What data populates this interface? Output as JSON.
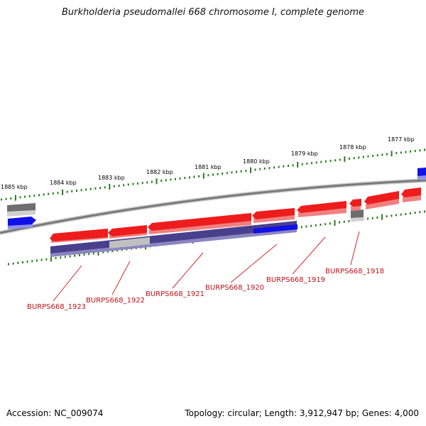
{
  "title": "Burkholderia pseudomallei 668 chromosome I, complete genome",
  "footer": {
    "accession": "Accession: NC_009074",
    "summary": "Topology: circular; Length: 3,912,947 bp; Genes: 4,000"
  },
  "scale_labels": [
    "1885 kbp",
    "1884 kbp",
    "1883 kbp",
    "1882 kbp",
    "1881 kbp",
    "1880 kbp",
    "1879 kbp",
    "1878 kbp",
    "1877 kbp"
  ],
  "gene_labels": [
    "BURPS668_1923",
    "BURPS668_1922",
    "BURPS668_1921",
    "BURPS668_1920",
    "BURPS668_1919",
    "BURPS668_1918"
  ],
  "colors": {
    "gene": "#ee1c1c",
    "gene_shadow": "#f08080",
    "tick": "#2a7a1e",
    "backbone": "#8a8a8a",
    "purple_track": "#4a3f8c",
    "grey_feature": "#6e6e6e",
    "light_grey_feature": "#c0c0c0",
    "blue_feature": "#1010e8",
    "label": "#c0101a"
  }
}
